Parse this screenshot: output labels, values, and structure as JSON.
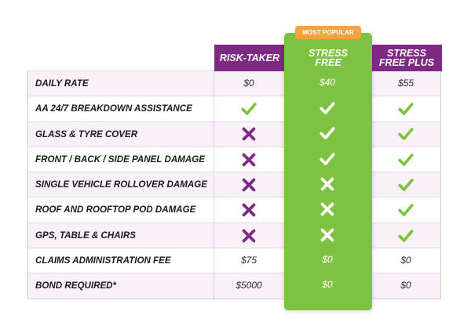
{
  "badge": "MOST POPULAR",
  "columns": {
    "c1": {
      "line1": "RISK-TAKER",
      "line2": ""
    },
    "c2": {
      "line1": "STRESS",
      "line2": "FREE"
    },
    "c3": {
      "line1": "STRESS",
      "line2": "FREE PLUS"
    }
  },
  "colors": {
    "purple": "#7e2a84",
    "green": "#7ec242",
    "orange": "#f5a33c",
    "check_green": "#7ec242",
    "cross_purple": "#7e2a84"
  },
  "rows": [
    {
      "label": "DAILY RATE",
      "c1": {
        "type": "text",
        "value": "$0"
      },
      "c2": {
        "type": "text",
        "value": "$40"
      },
      "c3": {
        "type": "text",
        "value": "$55"
      }
    },
    {
      "label": "AA 24/7 BREAKDOWN ASSISTANCE",
      "c1": {
        "type": "icon",
        "value": "check-icon"
      },
      "c2": {
        "type": "icon",
        "value": "check-icon"
      },
      "c3": {
        "type": "icon",
        "value": "check-icon"
      }
    },
    {
      "label": "GLASS & TYRE COVER",
      "c1": {
        "type": "icon",
        "value": "cross-icon"
      },
      "c2": {
        "type": "icon",
        "value": "check-icon"
      },
      "c3": {
        "type": "icon",
        "value": "check-icon"
      }
    },
    {
      "label": "FRONT / BACK / SIDE PANEL DAMAGE",
      "c1": {
        "type": "icon",
        "value": "cross-icon"
      },
      "c2": {
        "type": "icon",
        "value": "check-icon"
      },
      "c3": {
        "type": "icon",
        "value": "check-icon"
      }
    },
    {
      "label": "SINGLE VEHICLE ROLLOVER DAMAGE",
      "c1": {
        "type": "icon",
        "value": "cross-icon"
      },
      "c2": {
        "type": "icon",
        "value": "cross-icon"
      },
      "c3": {
        "type": "icon",
        "value": "check-icon"
      }
    },
    {
      "label": "ROOF AND ROOFTOP POD DAMAGE",
      "c1": {
        "type": "icon",
        "value": "cross-icon"
      },
      "c2": {
        "type": "icon",
        "value": "cross-icon"
      },
      "c3": {
        "type": "icon",
        "value": "check-icon"
      }
    },
    {
      "label": "GPS, TABLE & CHAIRS",
      "c1": {
        "type": "icon",
        "value": "cross-icon"
      },
      "c2": {
        "type": "icon",
        "value": "cross-icon"
      },
      "c3": {
        "type": "icon",
        "value": "check-icon"
      }
    },
    {
      "label": "CLAIMS ADMINISTRATION FEE",
      "c1": {
        "type": "text",
        "value": "$75"
      },
      "c2": {
        "type": "text",
        "value": "$0"
      },
      "c3": {
        "type": "text",
        "value": "$0"
      }
    },
    {
      "label": "BOND REQUIRED*",
      "c1": {
        "type": "text",
        "value": "$5000"
      },
      "c2": {
        "type": "text",
        "value": "$0"
      },
      "c3": {
        "type": "text",
        "value": "$0"
      }
    }
  ]
}
